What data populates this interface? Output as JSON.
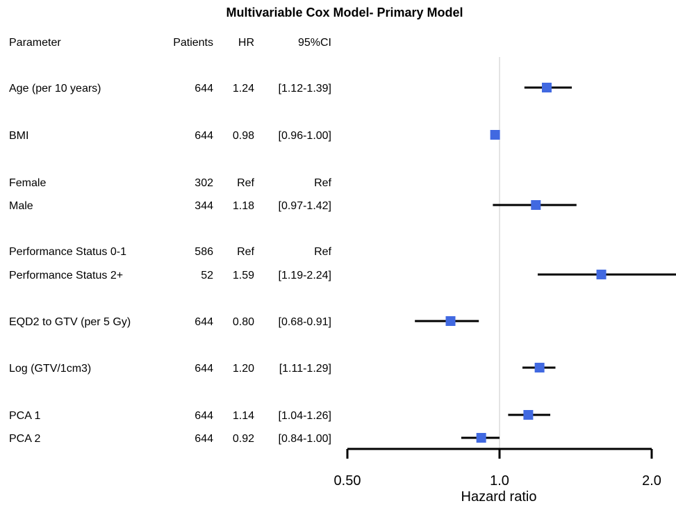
{
  "chart_data": {
    "type": "forest",
    "title": "Multivariable Cox Model- Primary Model",
    "columns": [
      "Parameter",
      "Patients",
      "HR",
      "95%CI"
    ],
    "rows": [
      {
        "parameter": "Age (per 10 years)",
        "patients": "644",
        "hr_label": "1.24",
        "ci_label": "[1.12-1.39]",
        "hr": 1.24,
        "lower": 1.12,
        "upper": 1.39
      },
      {
        "parameter": "BMI",
        "patients": "644",
        "hr_label": "0.98",
        "ci_label": "[0.96-1.00]",
        "hr": 0.98,
        "lower": 0.96,
        "upper": 1.0
      },
      {
        "parameter": "Female",
        "patients": "302",
        "hr_label": "Ref",
        "ci_label": "Ref",
        "hr": null,
        "lower": null,
        "upper": null
      },
      {
        "parameter": "Male",
        "patients": "344",
        "hr_label": "1.18",
        "ci_label": "[0.97-1.42]",
        "hr": 1.18,
        "lower": 0.97,
        "upper": 1.42
      },
      {
        "parameter": "Performance Status 0-1",
        "patients": "586",
        "hr_label": "Ref",
        "ci_label": "Ref",
        "hr": null,
        "lower": null,
        "upper": null
      },
      {
        "parameter": "Performance Status 2+",
        "patients": "52",
        "hr_label": "1.59",
        "ci_label": "[1.19-2.24]",
        "hr": 1.59,
        "lower": 1.19,
        "upper": 2.24
      },
      {
        "parameter": "EQD2 to GTV (per 5 Gy)",
        "patients": "644",
        "hr_label": "0.80",
        "ci_label": "[0.68-0.91]",
        "hr": 0.8,
        "lower": 0.68,
        "upper": 0.91
      },
      {
        "parameter": "Log (GTV/1cm3)",
        "patients": "644",
        "hr_label": "1.20",
        "ci_label": "[1.11-1.29]",
        "hr": 1.2,
        "lower": 1.11,
        "upper": 1.29
      },
      {
        "parameter": "PCA 1",
        "patients": "644",
        "hr_label": "1.14",
        "ci_label": "[1.04-1.26]",
        "hr": 1.14,
        "lower": 1.04,
        "upper": 1.26
      },
      {
        "parameter": "PCA 2",
        "patients": "644",
        "hr_label": "0.92",
        "ci_label": "[0.84-1.00]",
        "hr": 0.92,
        "lower": 0.84,
        "upper": 1.0
      }
    ],
    "x_axis": {
      "label": "Hazard ratio",
      "scale": "log",
      "ticks": [
        0.5,
        1.0,
        2.0
      ],
      "tick_labels": [
        "0.50",
        "1.0",
        "2.0"
      ],
      "reference_line": 1.0
    },
    "colors": {
      "marker": "#4169e1",
      "ci_line": "#000000",
      "reference_line": "#c8c8c8",
      "text": "#000000"
    }
  }
}
